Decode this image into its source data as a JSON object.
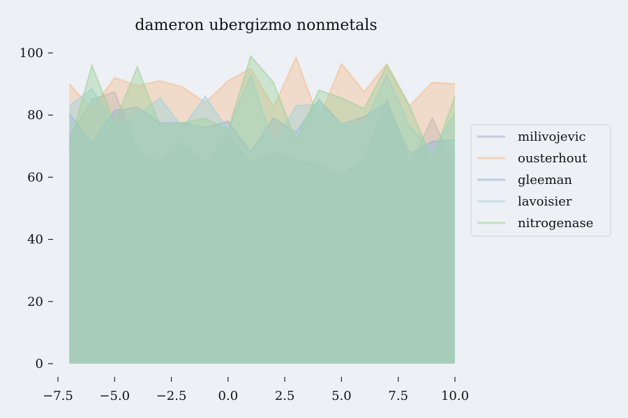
{
  "chart_data": {
    "type": "area",
    "title": "dameron ubergizmo nonmetals",
    "xlabel": "",
    "ylabel": "",
    "x": [
      -7,
      -6,
      -5,
      -4,
      -3,
      -2,
      -1,
      0,
      1,
      2,
      3,
      4,
      5,
      6,
      7,
      8,
      9,
      10
    ],
    "xlim": [
      -7.5,
      10.0
    ],
    "ylim": [
      0,
      100
    ],
    "xticks": [
      -7.5,
      -5.0,
      -2.5,
      0.0,
      2.5,
      5.0,
      7.5,
      10.0
    ],
    "xtick_labels": [
      "−7.5",
      "−5.0",
      "−2.5",
      "0.0",
      "2.5",
      "5.0",
      "7.5",
      "10.0"
    ],
    "yticks": [
      0,
      20,
      40,
      60,
      80,
      100
    ],
    "ytick_labels": [
      "0",
      "20",
      "40",
      "60",
      "80",
      "100"
    ],
    "grid": false,
    "legend_position": "right",
    "series": [
      {
        "name": "milivojevic",
        "color": "#9fb3cc",
        "values": [
          73,
          85,
          87.5,
          68.5,
          64.5,
          71,
          64,
          73.5,
          64.5,
          68,
          65.5,
          64,
          60.5,
          66,
          85,
          63.5,
          79,
          63.5
        ]
      },
      {
        "name": "ousterhout",
        "color": "#f5bc8e",
        "values": [
          90,
          82,
          92,
          89.5,
          91,
          89,
          84,
          91,
          95,
          82.5,
          98.5,
          78.5,
          96.5,
          87.5,
          96.5,
          83,
          90.5,
          90
        ]
      },
      {
        "name": "gleeman",
        "color": "#8eb3d6",
        "values": [
          80.5,
          71,
          81.5,
          82.5,
          77.5,
          77.5,
          76,
          78,
          68,
          79,
          74.5,
          85,
          77,
          79.5,
          84,
          67.5,
          71.5,
          72
        ]
      },
      {
        "name": "lavoisier",
        "color": "#9cd3dc",
        "values": [
          83,
          88.5,
          77,
          80,
          85.5,
          76,
          86,
          75,
          93,
          70.5,
          83,
          83.5,
          76.5,
          77,
          93,
          76.5,
          68.5,
          80.5
        ]
      },
      {
        "name": "nitrogenase",
        "color": "#9fd29b",
        "values": [
          70,
          96,
          77.5,
          95.5,
          76.5,
          77.5,
          79,
          75,
          99,
          90.5,
          71.5,
          88,
          85.5,
          82,
          96,
          83,
          65.5,
          86
        ]
      }
    ]
  }
}
